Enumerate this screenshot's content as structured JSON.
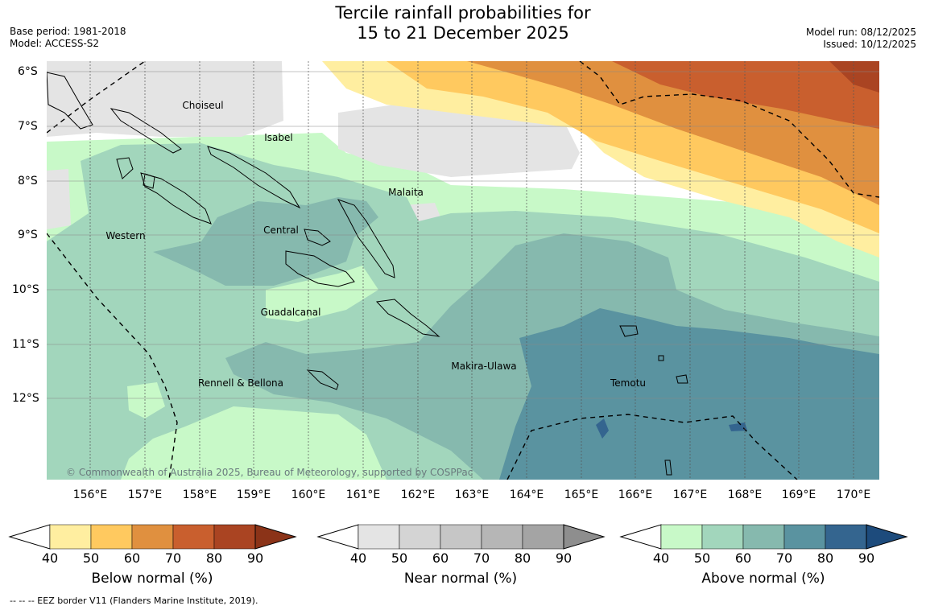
{
  "title": {
    "line1": "Tercile rainfall probabilities for",
    "line2": "15 to 21 December 2025"
  },
  "meta": {
    "base_period": "Base period: 1981-2018",
    "model": "Model: ACCESS-S2",
    "model_run": "Model run: 08/12/2025",
    "issued": "Issued: 10/12/2025"
  },
  "map": {
    "lon_labels": [
      "156°E",
      "157°E",
      "158°E",
      "159°E",
      "160°E",
      "161°E",
      "162°E",
      "163°E",
      "164°E",
      "165°E",
      "166°E",
      "167°E",
      "168°E",
      "169°E",
      "170°E"
    ],
    "lat_labels": [
      "6°S",
      "7°S",
      "8°S",
      "9°S",
      "10°S",
      "11°S",
      "12°S"
    ],
    "places": [
      "Choiseul",
      "Isabel",
      "Malaita",
      "Western",
      "Central",
      "Guadalcanal",
      "Makira-Ulawa",
      "Rennell & Bellona",
      "Temotu"
    ],
    "credit": "© Commonwealth of Australia 2025, Bureau of Meteorology, supported by COSPPac"
  },
  "colorbars": [
    {
      "label": "Below normal (%)",
      "ticks": [
        "40",
        "50",
        "60",
        "70",
        "80",
        "90"
      ],
      "colors": [
        "#ffeea0",
        "#ffc95f",
        "#e0903f",
        "#c95f2e",
        "#aa4422",
        "#8b3318"
      ]
    },
    {
      "label": "Near normal (%)",
      "ticks": [
        "40",
        "50",
        "60",
        "70",
        "80",
        "90"
      ],
      "colors": [
        "#e4e4e4",
        "#d4d4d4",
        "#c6c6c6",
        "#b6b6b6",
        "#a4a4a4",
        "#8e8e8e"
      ]
    },
    {
      "label": "Above normal (%)",
      "ticks": [
        "40",
        "50",
        "60",
        "70",
        "80",
        "90"
      ],
      "colors": [
        "#c8f9c8",
        "#a2d6bc",
        "#86b9ae",
        "#5a93a0",
        "#34658f",
        "#1d4b7c"
      ]
    }
  ],
  "footer": "--  --  -- EEZ border V11 (Flanders Marine Institute, 2019)."
}
